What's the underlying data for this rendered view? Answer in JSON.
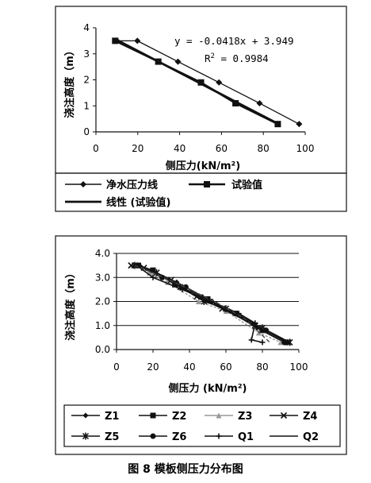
{
  "caption": "图 8   模板侧压力分布图",
  "chart_data": [
    {
      "type": "line",
      "xlabel": "侧压力(kN/m²)",
      "ylabel": "浇注高度（m）",
      "xlim": [
        0,
        100
      ],
      "ylim": [
        0,
        4
      ],
      "xticks": [
        "0",
        "20",
        "40",
        "60",
        "80",
        "100"
      ],
      "yticks": [
        "0",
        "1",
        "2",
        "3",
        "4"
      ],
      "grid": false,
      "legend_position": "bottom",
      "annotation": {
        "equation": "y = -0.0418x + 3.949",
        "r2_prefix": "R",
        "r2_sup": "2",
        "r2_value": " = 0.9984"
      },
      "series": [
        {
          "name": "净水压力线",
          "marker": "diamond",
          "x": [
            10.1,
            19.8,
            39.2,
            58.8,
            78.2,
            97.1
          ],
          "y": [
            3.5,
            3.5,
            2.7,
            1.9,
            1.1,
            0.3
          ]
        },
        {
          "name": "试验值",
          "marker": "square",
          "x": [
            9.2,
            29.8,
            50.2,
            66.7,
            86.9
          ],
          "y": [
            3.5,
            2.7,
            1.9,
            1.1,
            0.3
          ]
        },
        {
          "name": "线性 (试验值)",
          "marker": "none",
          "x": [
            9.2,
            86.9
          ],
          "y": [
            3.564,
            0.317
          ]
        }
      ]
    },
    {
      "type": "line",
      "xlabel": "侧压力 (kN/m²)",
      "ylabel": "浇注高度（m）",
      "xlim": [
        0,
        100
      ],
      "ylim": [
        0,
        4
      ],
      "xticks": [
        "0",
        "20",
        "40",
        "60",
        "80",
        "100"
      ],
      "yticks": [
        "0.0",
        "1.0",
        "2.0",
        "3.0",
        "4.0"
      ],
      "grid": true,
      "legend_position": "bottom",
      "series": [
        {
          "name": "Z1",
          "marker": "diamond",
          "x": [
            10,
            19,
            33,
            47,
            62,
            77,
            92
          ],
          "y": [
            3.5,
            3.3,
            2.8,
            2.2,
            1.6,
            0.9,
            0.3
          ]
        },
        {
          "name": "Z2",
          "marker": "square",
          "x": [
            12,
            20,
            32,
            50,
            65,
            80,
            93
          ],
          "y": [
            3.5,
            3.3,
            2.7,
            2.1,
            1.5,
            0.8,
            0.3
          ]
        },
        {
          "name": "Z3",
          "marker": "triangle",
          "x": [
            9,
            18,
            28,
            45,
            60,
            78,
            90
          ],
          "y": [
            3.5,
            3.2,
            2.8,
            2.0,
            1.6,
            0.7,
            0.3
          ]
        },
        {
          "name": "Z4",
          "marker": "x",
          "x": [
            8,
            15,
            30,
            44,
            58,
            76,
            94
          ],
          "y": [
            3.5,
            3.4,
            2.9,
            2.2,
            1.7,
            1.0,
            0.3
          ]
        },
        {
          "name": "Z5",
          "marker": "star",
          "x": [
            10,
            22,
            35,
            48,
            60,
            80,
            95
          ],
          "y": [
            3.5,
            3.2,
            2.6,
            2.0,
            1.7,
            0.9,
            0.3
          ]
        },
        {
          "name": "Z6",
          "marker": "circle",
          "x": [
            12,
            25,
            38,
            52,
            66,
            82,
            92
          ],
          "y": [
            3.5,
            3.0,
            2.6,
            2.0,
            1.5,
            0.8,
            0.3
          ]
        },
        {
          "name": "Q1",
          "marker": "plus",
          "x": [
            11,
            20,
            36,
            55,
            67,
            76,
            74,
            80
          ],
          "y": [
            3.5,
            3.0,
            2.5,
            1.9,
            1.5,
            1.1,
            0.4,
            0.3
          ]
        },
        {
          "name": "Q2",
          "marker": "none",
          "x": [
            10,
            26,
            43,
            56,
            70,
            84
          ],
          "y": [
            3.5,
            3.0,
            2.4,
            1.9,
            1.3,
            0.3
          ]
        }
      ]
    }
  ]
}
